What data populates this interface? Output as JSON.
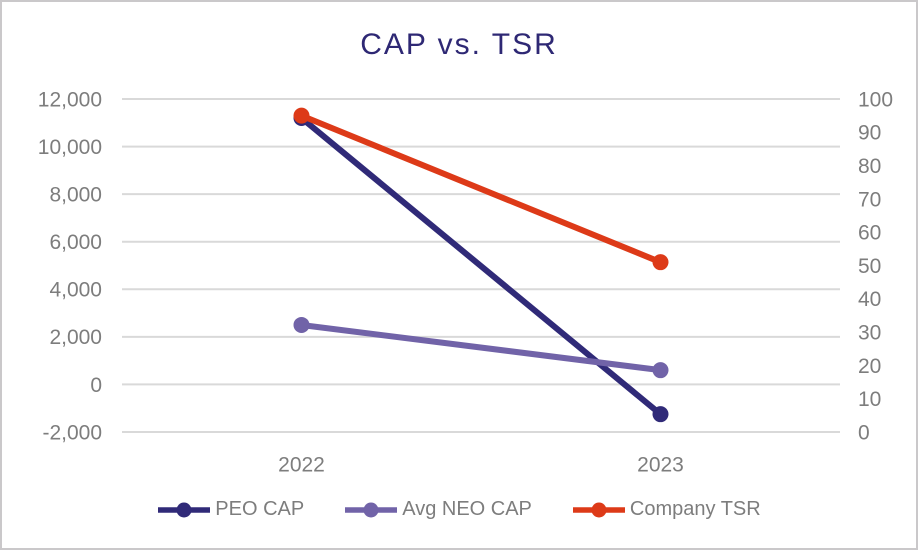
{
  "frame": {
    "background_color": "#ffffff",
    "border_color": "#cac8ca"
  },
  "chart_data": {
    "type": "line",
    "title": "CAP vs. TSR",
    "title_color": "#2e2874",
    "categories": [
      "2022",
      "2023"
    ],
    "series": [
      {
        "name": "PEO CAP",
        "axis": "left",
        "color": "#302a78",
        "values": [
          11200,
          -1250
        ]
      },
      {
        "name": "Avg NEO CAP",
        "axis": "left",
        "color": "#7163a8",
        "values": [
          2500,
          600
        ]
      },
      {
        "name": "Company TSR",
        "axis": "right",
        "color": "#dd3a18",
        "values": [
          95,
          51
        ]
      }
    ],
    "left_axis": {
      "min": -2000,
      "max": 12000,
      "step": 2000,
      "tick_labels": [
        "12,000",
        "10,000",
        "8,000",
        "6,000",
        "4,000",
        "2,000",
        "0",
        "-2,000"
      ]
    },
    "right_axis": {
      "min": 0,
      "max": 100,
      "step": 10,
      "tick_labels": [
        "100",
        "90",
        "80",
        "70",
        "60",
        "50",
        "40",
        "30",
        "20",
        "10",
        "0"
      ]
    },
    "grid": true,
    "gridline_color": "#d9d9d9",
    "axis_label_color": "#7d7d7d",
    "legend_position": "bottom"
  }
}
